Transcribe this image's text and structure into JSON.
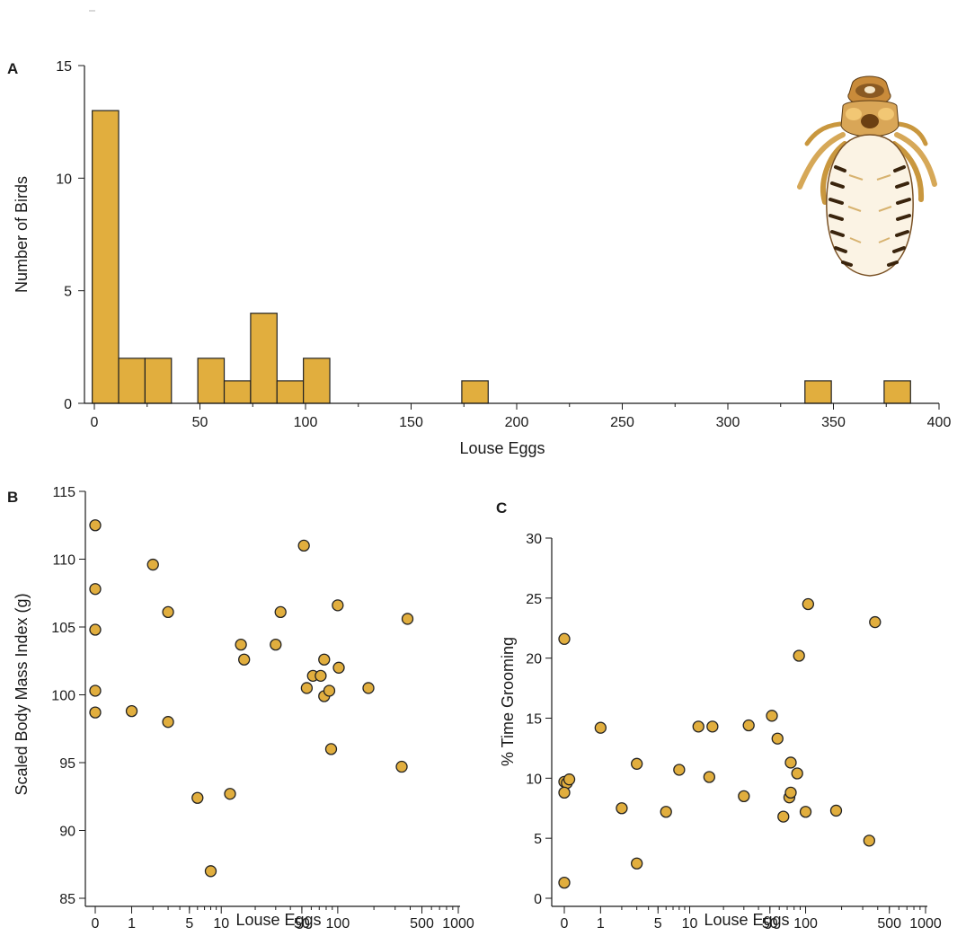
{
  "colors": {
    "fill": "#E1AE3E",
    "stroke": "#222222"
  },
  "panels": {
    "A": {
      "label": "A"
    },
    "B": {
      "label": "B"
    },
    "C": {
      "label": "C"
    }
  },
  "chart_data": [
    {
      "panel": "A",
      "type": "bar",
      "subtype": "histogram",
      "title": "",
      "xlabel": "Louse Eggs",
      "ylabel": "Number of Birds",
      "xlim": [
        0,
        400
      ],
      "ylim": [
        0,
        15
      ],
      "xticks": [
        0,
        50,
        100,
        150,
        200,
        250,
        300,
        350,
        400
      ],
      "yticks": [
        0,
        5,
        10,
        15
      ],
      "bin_width": 12.5,
      "bins": [
        {
          "start": -1,
          "end": 11.5,
          "count": 13
        },
        {
          "start": 11.5,
          "end": 24,
          "count": 2
        },
        {
          "start": 24,
          "end": 36.5,
          "count": 2
        },
        {
          "start": 49,
          "end": 61.5,
          "count": 2
        },
        {
          "start": 61.5,
          "end": 74,
          "count": 1
        },
        {
          "start": 74,
          "end": 86.5,
          "count": 4
        },
        {
          "start": 86.5,
          "end": 99,
          "count": 1
        },
        {
          "start": 99,
          "end": 111.5,
          "count": 2
        },
        {
          "start": 174,
          "end": 186.5,
          "count": 1
        },
        {
          "start": 336.5,
          "end": 349,
          "count": 1
        },
        {
          "start": 374,
          "end": 386.5,
          "count": 1
        }
      ],
      "grid": false,
      "legend": "none",
      "inset_image": "louse-illustration"
    },
    {
      "panel": "B",
      "type": "scatter",
      "title": "",
      "xlabel": "Louse Eggs",
      "ylabel": "Scaled Body Mass Index (g)",
      "xscale": "log1p",
      "xlim": [
        0,
        1000
      ],
      "ylim": [
        85,
        115
      ],
      "xticks": [
        0,
        1,
        5,
        10,
        50,
        100,
        500,
        1000
      ],
      "yticks": [
        85,
        90,
        95,
        100,
        105,
        110,
        115
      ],
      "points": [
        {
          "x": 0,
          "y": 112.5
        },
        {
          "x": 0,
          "y": 107.8
        },
        {
          "x": 0,
          "y": 104.8
        },
        {
          "x": 0,
          "y": 100.3
        },
        {
          "x": 0,
          "y": 98.7
        },
        {
          "x": 1,
          "y": 98.8
        },
        {
          "x": 2,
          "y": 109.6
        },
        {
          "x": 3,
          "y": 106.1
        },
        {
          "x": 3,
          "y": 98.0
        },
        {
          "x": 6,
          "y": 92.4
        },
        {
          "x": 8,
          "y": 87.0
        },
        {
          "x": 12,
          "y": 92.7
        },
        {
          "x": 15,
          "y": 103.7
        },
        {
          "x": 16,
          "y": 102.6
        },
        {
          "x": 30,
          "y": 103.7
        },
        {
          "x": 33,
          "y": 106.1
        },
        {
          "x": 52,
          "y": 111.0
        },
        {
          "x": 55,
          "y": 100.5
        },
        {
          "x": 62,
          "y": 101.4
        },
        {
          "x": 72,
          "y": 101.4
        },
        {
          "x": 77,
          "y": 102.6
        },
        {
          "x": 77,
          "y": 99.9
        },
        {
          "x": 85,
          "y": 100.3
        },
        {
          "x": 88,
          "y": 96.0
        },
        {
          "x": 100,
          "y": 106.6
        },
        {
          "x": 102,
          "y": 102.0
        },
        {
          "x": 180,
          "y": 100.5
        },
        {
          "x": 340,
          "y": 94.7
        },
        {
          "x": 380,
          "y": 105.6
        }
      ],
      "grid": false,
      "legend": "none"
    },
    {
      "panel": "C",
      "type": "scatter",
      "title": "",
      "xlabel": "Louse Eggs",
      "ylabel": "% Time Grooming",
      "xscale": "log1p",
      "xlim": [
        0,
        1000
      ],
      "ylim": [
        0,
        30
      ],
      "xticks": [
        0,
        1,
        5,
        10,
        50,
        100,
        500,
        1000
      ],
      "yticks": [
        0,
        5,
        10,
        15,
        20,
        25,
        30
      ],
      "points": [
        {
          "x": 0,
          "y": 21.6
        },
        {
          "x": 0,
          "y": 9.7
        },
        {
          "x": 0.05,
          "y": 9.6
        },
        {
          "x": 0,
          "y": 8.8
        },
        {
          "x": 0,
          "y": 1.3
        },
        {
          "x": 0.1,
          "y": 9.9
        },
        {
          "x": 1,
          "y": 14.2
        },
        {
          "x": 2,
          "y": 7.5
        },
        {
          "x": 3,
          "y": 11.2
        },
        {
          "x": 3,
          "y": 2.9
        },
        {
          "x": 6,
          "y": 7.2
        },
        {
          "x": 8,
          "y": 10.7
        },
        {
          "x": 12,
          "y": 14.3
        },
        {
          "x": 15,
          "y": 10.1
        },
        {
          "x": 16,
          "y": 14.3
        },
        {
          "x": 30,
          "y": 8.5
        },
        {
          "x": 33,
          "y": 14.4
        },
        {
          "x": 52,
          "y": 15.2
        },
        {
          "x": 58,
          "y": 13.3
        },
        {
          "x": 65,
          "y": 6.8
        },
        {
          "x": 73,
          "y": 8.4
        },
        {
          "x": 75,
          "y": 11.3
        },
        {
          "x": 75,
          "y": 8.8
        },
        {
          "x": 85,
          "y": 10.4
        },
        {
          "x": 88,
          "y": 20.2
        },
        {
          "x": 100,
          "y": 7.2
        },
        {
          "x": 105,
          "y": 24.5
        },
        {
          "x": 180,
          "y": 7.3
        },
        {
          "x": 340,
          "y": 4.8
        },
        {
          "x": 380,
          "y": 23.0
        }
      ],
      "grid": false,
      "legend": "none"
    }
  ]
}
